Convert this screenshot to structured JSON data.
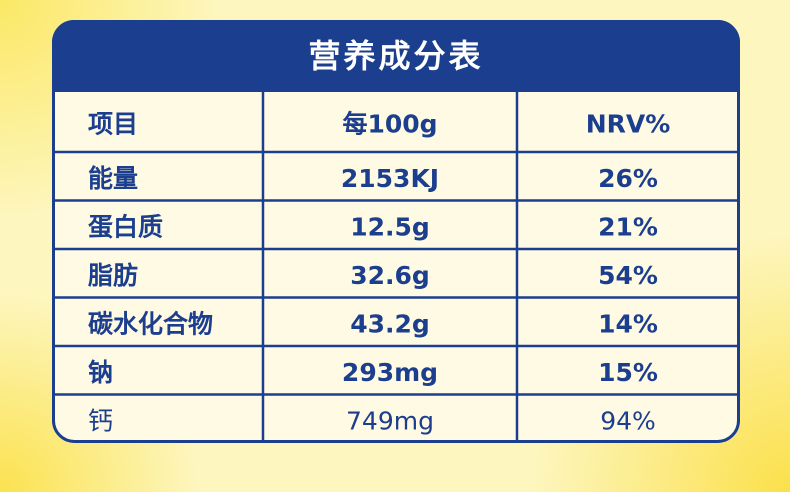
{
  "table": {
    "title": "营养成分表",
    "header": [
      "项目",
      "每100g",
      "NRV%"
    ],
    "rows": [
      [
        "能量",
        "2153KJ",
        "26%"
      ],
      [
        "蛋白质",
        "12.5g",
        "21%"
      ],
      [
        "脂肪",
        "32.6g",
        "54%"
      ],
      [
        "碳水化合物",
        "43.2g",
        "14%"
      ],
      [
        "钠",
        "293mg",
        "15%"
      ],
      [
        "钙",
        "749mg",
        "94%"
      ]
    ]
  }
}
